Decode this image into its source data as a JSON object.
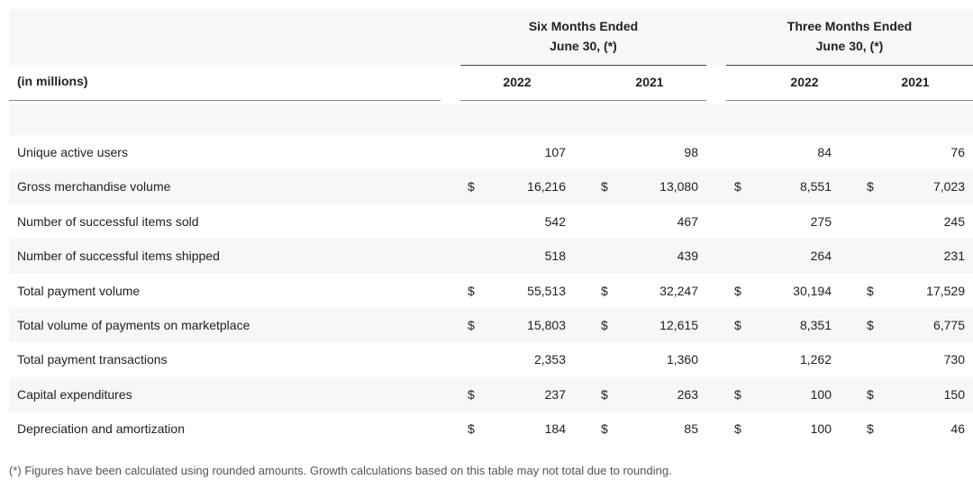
{
  "table": {
    "groups": [
      {
        "line1": "Six Months Ended",
        "line2": "June 30, (*)"
      },
      {
        "line1": "Three Months Ended",
        "line2": "June 30, (*)"
      }
    ],
    "unit_label": "(in millions)",
    "columns": [
      "2022",
      "2021",
      "2022",
      "2021"
    ],
    "rows": [
      {
        "label": "Unique active users",
        "values": [
          "107",
          "98",
          "84",
          "76"
        ]
      },
      {
        "label": "Gross merchandise volume",
        "currency": [
          "$",
          "$",
          "$",
          "$"
        ],
        "values": [
          "16,216",
          "13,080",
          "8,551",
          "7,023"
        ]
      },
      {
        "label": "Number of successful items sold",
        "values": [
          "542",
          "467",
          "275",
          "245"
        ]
      },
      {
        "label": "Number of successful items shipped",
        "values": [
          "518",
          "439",
          "264",
          "231"
        ]
      },
      {
        "label": "Total payment volume",
        "currency": [
          "$",
          "$",
          "$",
          "$"
        ],
        "values": [
          "55,513",
          "32,247",
          "30,194",
          "17,529"
        ]
      },
      {
        "label": "Total volume of payments on marketplace",
        "currency": [
          "$",
          "$",
          "$",
          "$"
        ],
        "values": [
          "15,803",
          "12,615",
          "8,351",
          "6,775"
        ]
      },
      {
        "label": "Total payment transactions",
        "values": [
          "2,353",
          "1,360",
          "1,262",
          "730"
        ]
      },
      {
        "label": "Capital expenditures",
        "currency": [
          "$",
          "$",
          "$",
          "$"
        ],
        "values": [
          "237",
          "263",
          "100",
          "150"
        ]
      },
      {
        "label": "Depreciation and amortization",
        "currency": [
          "$",
          "$",
          "$",
          "$"
        ],
        "values": [
          "184",
          "85",
          "100",
          "46"
        ]
      }
    ],
    "footnote": "(*) Figures have been calculated using rounded amounts. Growth calculations based on this table may not total due to rounding."
  }
}
